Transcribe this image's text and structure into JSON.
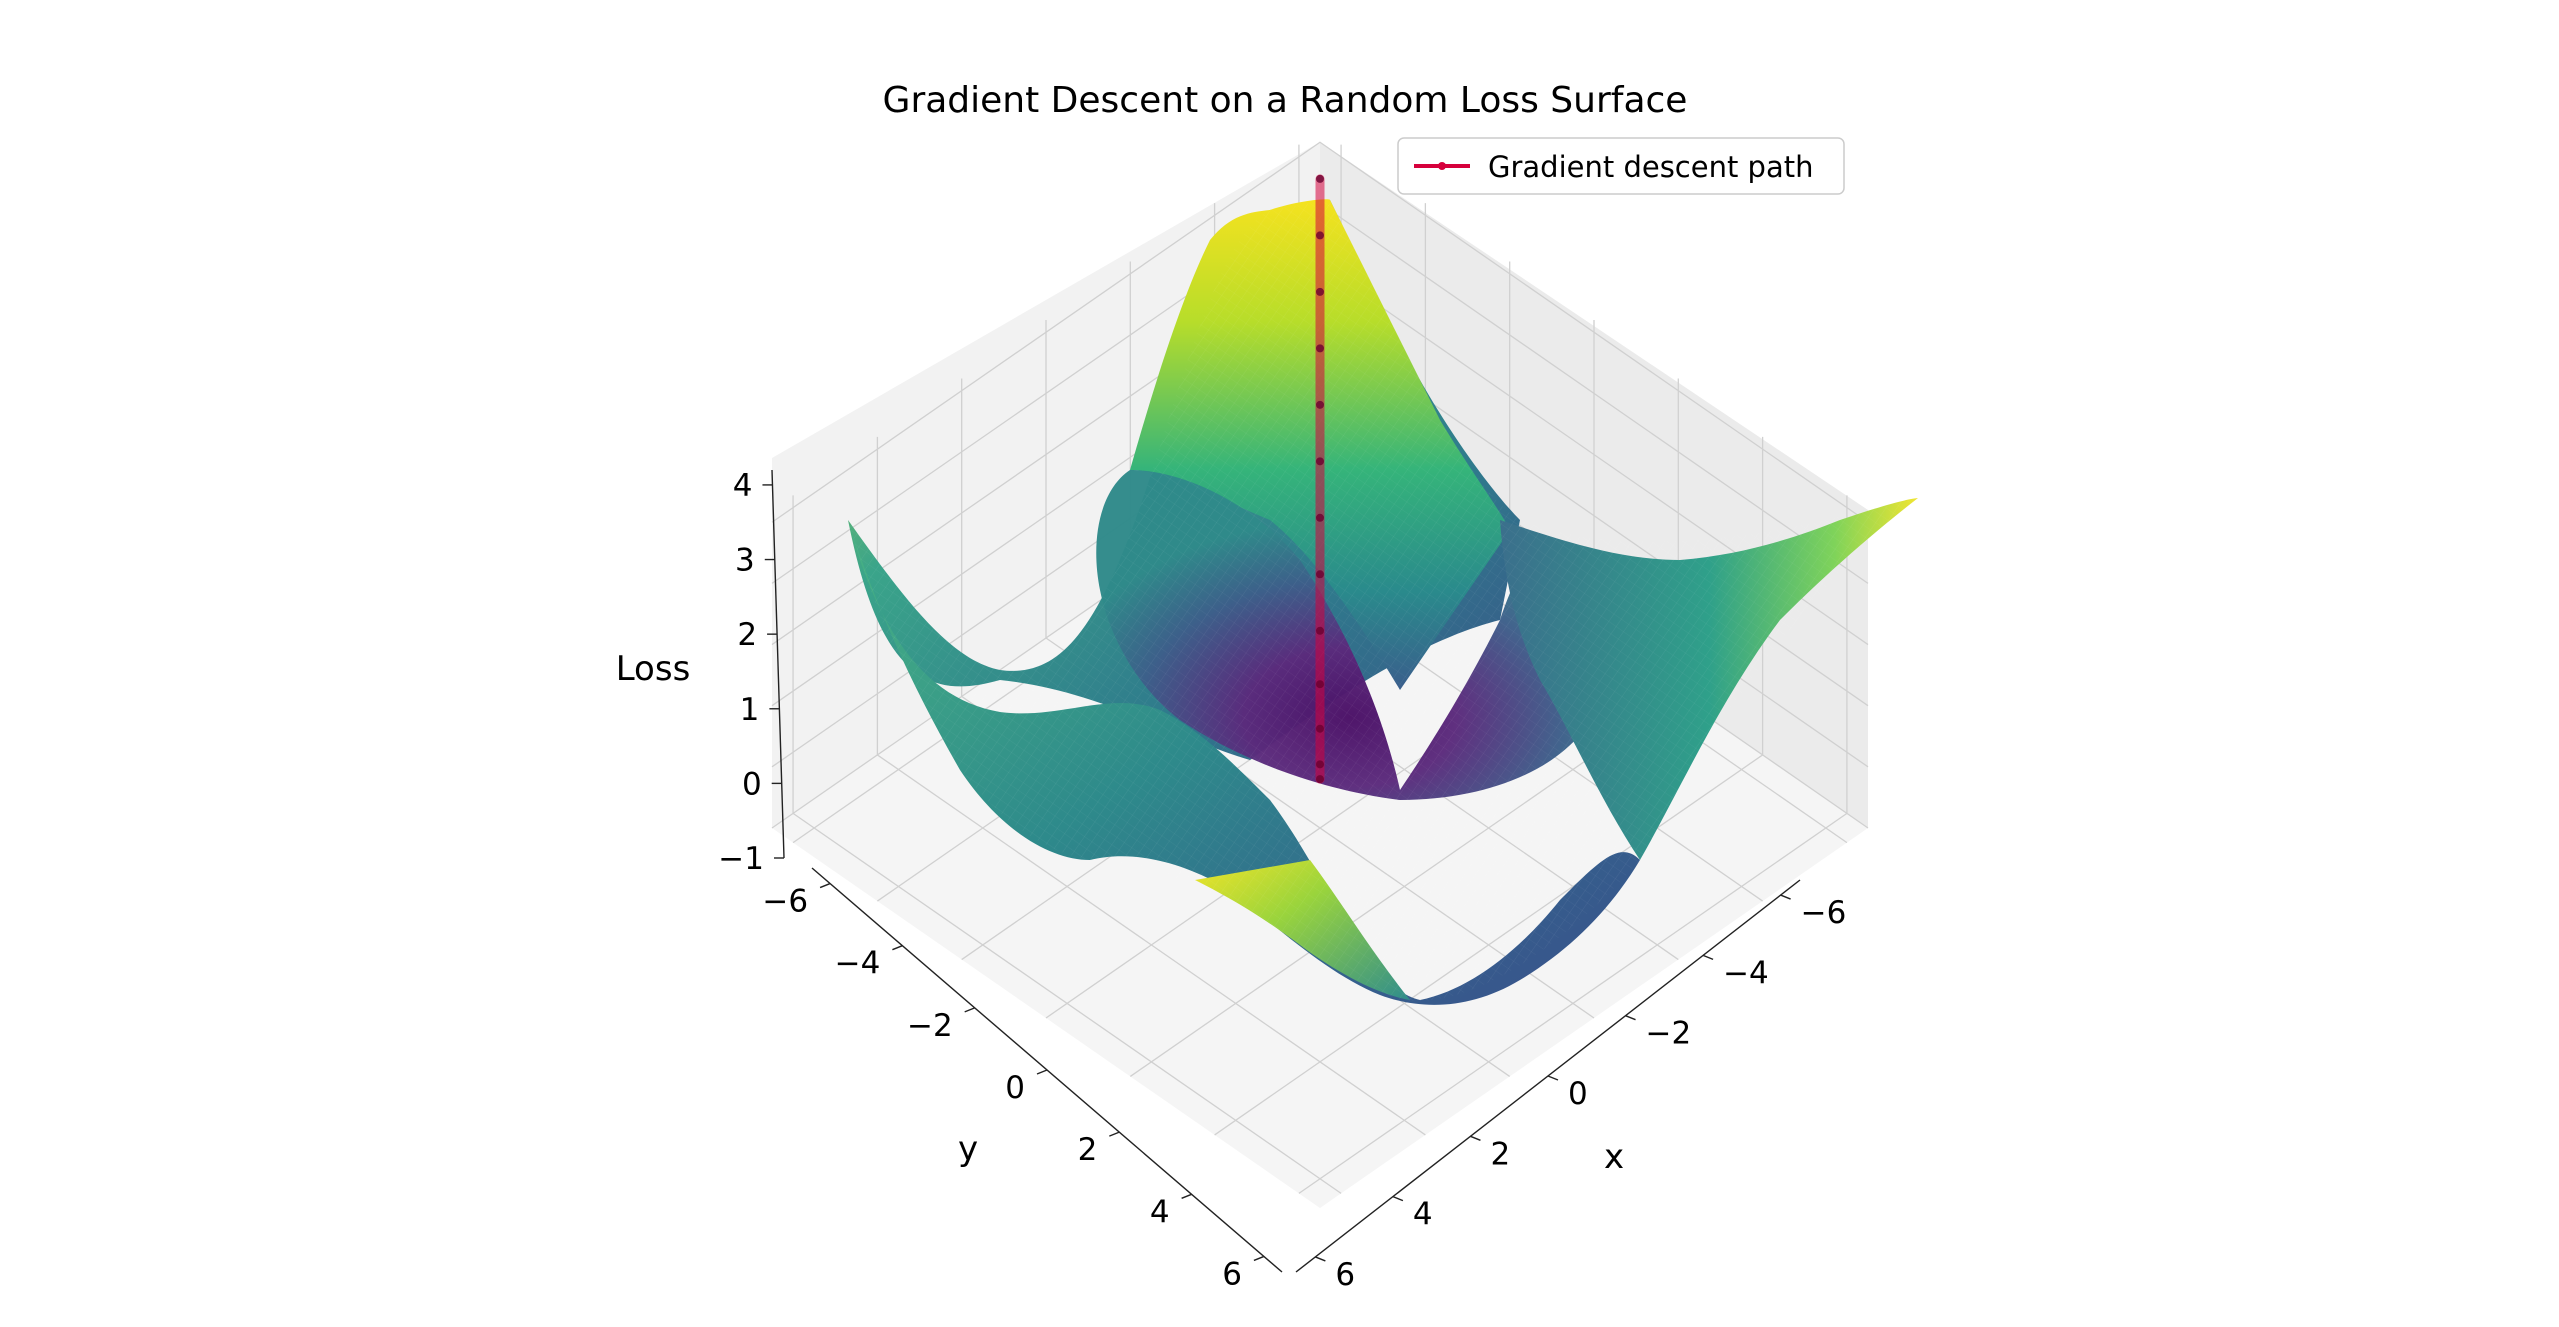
{
  "chart_data": {
    "type": "surface3d",
    "title": "Gradient Descent on a Random Loss Surface",
    "xlabel": "x",
    "ylabel": "y",
    "zlabel": "Loss",
    "xlim": [
      -6.5,
      6.5
    ],
    "ylim": [
      -6.5,
      6.5
    ],
    "zlim": [
      -1,
      4.2
    ],
    "x_ticks": [
      -6,
      -4,
      -2,
      0,
      2,
      4,
      6
    ],
    "y_ticks": [
      -6,
      -4,
      -2,
      0,
      2,
      4,
      6
    ],
    "z_ticks": [
      -1,
      0,
      1,
      2,
      3,
      4
    ],
    "x_tick_labels": [
      "−6",
      "−4",
      "−2",
      "0",
      "2",
      "4",
      "6"
    ],
    "y_tick_labels": [
      "−6",
      "−4",
      "−2",
      "0",
      "2",
      "4",
      "6"
    ],
    "z_tick_labels": [
      "−1",
      "0",
      "1",
      "2",
      "3",
      "4"
    ],
    "colormap": "viridis",
    "grid": true,
    "legend": {
      "position": "top-right",
      "entries": [
        {
          "label": "Gradient descent path",
          "color": "#d6003c"
        }
      ]
    },
    "series": [
      {
        "name": "Gradient descent path",
        "color": "#d6003c",
        "points": [
          {
            "x": -6.5,
            "y": -6.5,
            "z": 3.4
          },
          {
            "x": -5.9,
            "y": -5.9,
            "z": 3.05
          },
          {
            "x": -5.3,
            "y": -5.3,
            "z": 2.7
          },
          {
            "x": -4.7,
            "y": -4.7,
            "z": 2.35
          },
          {
            "x": -4.1,
            "y": -4.1,
            "z": 2.0
          },
          {
            "x": -3.5,
            "y": -3.5,
            "z": 1.65
          },
          {
            "x": -2.9,
            "y": -2.9,
            "z": 1.3
          },
          {
            "x": -2.3,
            "y": -2.3,
            "z": 0.95
          },
          {
            "x": -1.7,
            "y": -1.7,
            "z": 0.6
          },
          {
            "x": -1.1,
            "y": -1.1,
            "z": 0.3
          },
          {
            "x": -0.6,
            "y": -0.6,
            "z": 0.05
          },
          {
            "x": -0.2,
            "y": -0.2,
            "z": -0.15
          },
          {
            "x": 0.0,
            "y": 0.0,
            "z": -0.2
          }
        ]
      }
    ]
  }
}
